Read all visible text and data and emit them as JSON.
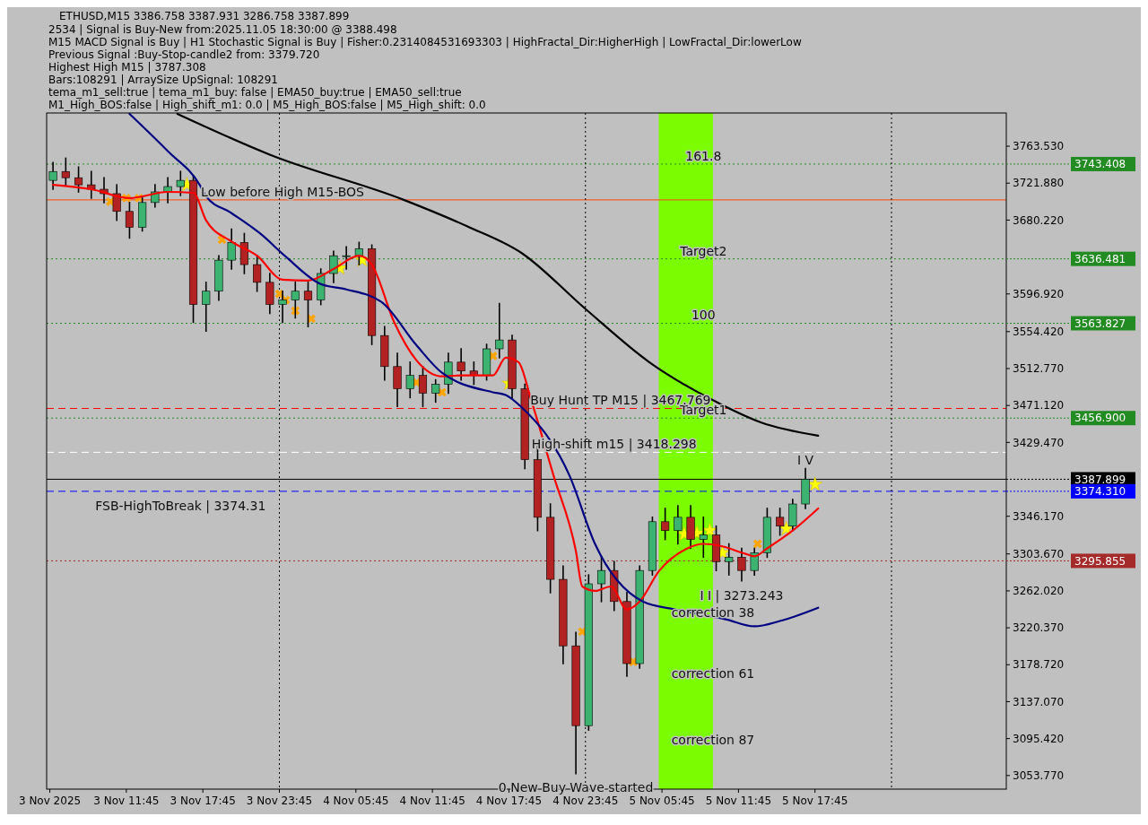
{
  "chart_data": {
    "type": "candlestick",
    "title": "ETHUSD,M15  3386.758 3387.931 3286.758 3387.899",
    "x": [
      "2025-11-03T06:00",
      "2025-11-03T07:00",
      "2025-11-03T08:00",
      "2025-11-03T09:00",
      "2025-11-03T10:00",
      "2025-11-03T11:00",
      "2025-11-03T12:00",
      "2025-11-03T13:00",
      "2025-11-03T14:00",
      "2025-11-03T15:00",
      "2025-11-03T16:00",
      "2025-11-03T17:00",
      "2025-11-03T18:00",
      "2025-11-03T19:00",
      "2025-11-03T20:00",
      "2025-11-03T21:00",
      "2025-11-03T22:00",
      "2025-11-03T23:00",
      "2025-11-04T00:00",
      "2025-11-04T01:00",
      "2025-11-04T02:00",
      "2025-11-04T03:00",
      "2025-11-04T04:00",
      "2025-11-04T05:00",
      "2025-11-04T06:00",
      "2025-11-04T07:00",
      "2025-11-04T08:00",
      "2025-11-04T09:00",
      "2025-11-04T10:00",
      "2025-11-04T11:00",
      "2025-11-04T12:00",
      "2025-11-04T13:00",
      "2025-11-04T14:00",
      "2025-11-04T15:00",
      "2025-11-04T16:00",
      "2025-11-04T17:00",
      "2025-11-04T18:00",
      "2025-11-04T19:00",
      "2025-11-04T20:00",
      "2025-11-04T21:00",
      "2025-11-04T22:00",
      "2025-11-04T23:00",
      "2025-11-05T00:00",
      "2025-11-05T01:00",
      "2025-11-05T02:00",
      "2025-11-05T03:00",
      "2025-11-05T04:00",
      "2025-11-05T05:00",
      "2025-11-05T06:00",
      "2025-11-05T07:00",
      "2025-11-05T08:00",
      "2025-11-05T09:00",
      "2025-11-05T10:00",
      "2025-11-05T11:00",
      "2025-11-05T12:00",
      "2025-11-05T13:00",
      "2025-11-05T14:00",
      "2025-11-05T15:00",
      "2025-11-05T16:00",
      "2025-11-05T17:00"
    ],
    "ohlc": [
      [
        3725,
        3745,
        3715,
        3735
      ],
      [
        3735,
        3750,
        3720,
        3728
      ],
      [
        3728,
        3740,
        3712,
        3720
      ],
      [
        3720,
        3735,
        3705,
        3715
      ],
      [
        3715,
        3728,
        3700,
        3710
      ],
      [
        3710,
        3720,
        3680,
        3690
      ],
      [
        3690,
        3700,
        3660,
        3672
      ],
      [
        3672,
        3705,
        3668,
        3700
      ],
      [
        3700,
        3720,
        3695,
        3712
      ],
      [
        3712,
        3728,
        3700,
        3718
      ],
      [
        3718,
        3735,
        3708,
        3725
      ],
      [
        3725,
        3730,
        3565,
        3585
      ],
      [
        3585,
        3610,
        3555,
        3600
      ],
      [
        3600,
        3640,
        3590,
        3635
      ],
      [
        3635,
        3670,
        3625,
        3655
      ],
      [
        3655,
        3665,
        3620,
        3630
      ],
      [
        3630,
        3640,
        3600,
        3610
      ],
      [
        3610,
        3620,
        3575,
        3585
      ],
      [
        3585,
        3600,
        3565,
        3590
      ],
      [
        3590,
        3610,
        3570,
        3600
      ],
      [
        3600,
        3610,
        3560,
        3590
      ],
      [
        3590,
        3625,
        3585,
        3620
      ],
      [
        3620,
        3645,
        3610,
        3640
      ],
      [
        3640,
        3650,
        3625,
        3640
      ],
      [
        3640,
        3655,
        3630,
        3648
      ],
      [
        3648,
        3652,
        3540,
        3550
      ],
      [
        3550,
        3560,
        3500,
        3515
      ],
      [
        3515,
        3530,
        3470,
        3490
      ],
      [
        3490,
        3520,
        3480,
        3505
      ],
      [
        3505,
        3515,
        3470,
        3485
      ],
      [
        3485,
        3500,
        3475,
        3495
      ],
      [
        3495,
        3530,
        3485,
        3520
      ],
      [
        3520,
        3535,
        3500,
        3510
      ],
      [
        3510,
        3520,
        3495,
        3505
      ],
      [
        3505,
        3540,
        3500,
        3535
      ],
      [
        3535,
        3586,
        3525,
        3545
      ],
      [
        3545,
        3550,
        3480,
        3490
      ],
      [
        3490,
        3495,
        3400,
        3410
      ],
      [
        3410,
        3425,
        3330,
        3345
      ],
      [
        3345,
        3360,
        3260,
        3275
      ],
      [
        3275,
        3290,
        3180,
        3200
      ],
      [
        3200,
        3215,
        3056,
        3110
      ],
      [
        3110,
        3280,
        3105,
        3270
      ],
      [
        3270,
        3300,
        3250,
        3285
      ],
      [
        3285,
        3295,
        3240,
        3250
      ],
      [
        3250,
        3260,
        3166,
        3180
      ],
      [
        3180,
        3290,
        3175,
        3285
      ],
      [
        3285,
        3345,
        3280,
        3340
      ],
      [
        3340,
        3355,
        3320,
        3330
      ],
      [
        3330,
        3358,
        3315,
        3345
      ],
      [
        3345,
        3358,
        3310,
        3320
      ],
      [
        3320,
        3345,
        3300,
        3325
      ],
      [
        3325,
        3335,
        3285,
        3295
      ],
      [
        3295,
        3315,
        3280,
        3300
      ],
      [
        3300,
        3310,
        3273.243,
        3285
      ],
      [
        3285,
        3310,
        3280,
        3305
      ],
      [
        3305,
        3355,
        3300,
        3345
      ],
      [
        3345,
        3355,
        3325,
        3335
      ],
      [
        3335,
        3365,
        3330,
        3360
      ],
      [
        3360,
        3400,
        3355,
        3388
      ]
    ],
    "series": [
      {
        "type": "line",
        "color": "#ff0000",
        "x": [
          "2025-11-03T06:00",
          "2025-11-03T09:00",
          "2025-11-03T12:00",
          "2025-11-03T15:00",
          "2025-11-03T17:00",
          "2025-11-03T18:00",
          "2025-11-03T20:00",
          "2025-11-03T22:00",
          "2025-11-04T00:00",
          "2025-11-04T02:00",
          "2025-11-04T04:00",
          "2025-11-04T06:00",
          "2025-11-04T07:00",
          "2025-11-04T08:45",
          "2025-11-04T10:30",
          "2025-11-04T12:30",
          "2025-11-04T14:00",
          "2025-11-04T16:30",
          "2025-11-04T17:30",
          "2025-11-04T18:30",
          "2025-11-04T19:30",
          "2025-11-04T21:15",
          "2025-11-04T23:00",
          "2025-11-04T23:30",
          "2025-11-05T00:30",
          "2025-11-05T01:45",
          "2025-11-05T03:00",
          "2025-11-05T04:00",
          "2025-11-05T05:30",
          "2025-11-05T07:45",
          "2025-11-05T09:00",
          "2025-11-05T10:15",
          "2025-11-05T12:15",
          "2025-11-05T13:00",
          "2025-11-05T14:00",
          "2025-11-05T16:00",
          "2025-11-05T18:00"
        ],
        "values": [
          3720,
          3715,
          3705,
          3712,
          3711,
          3680,
          3656,
          3640,
          3613,
          3612,
          3625,
          3640,
          3630,
          3565,
          3522,
          3504,
          3505,
          3505,
          3525,
          3520,
          3477,
          3392,
          3307,
          3267,
          3262,
          3267,
          3241,
          3250,
          3284,
          3310,
          3315,
          3313,
          3304,
          3301,
          3310,
          3330,
          3355
        ]
      },
      {
        "type": "line",
        "color": "#000080",
        "x": [
          "2025-11-03T12:00",
          "2025-11-03T15:00",
          "2025-11-03T17:30",
          "2025-11-03T18:00",
          "2025-11-03T20:00",
          "2025-11-03T22:15",
          "2025-11-04T00:15",
          "2025-11-04T03:00",
          "2025-11-04T05:00",
          "2025-11-04T07:45",
          "2025-11-04T10:30",
          "2025-11-04T12:30",
          "2025-11-04T16:30",
          "2025-11-04T17:30",
          "2025-11-04T18:45",
          "2025-11-04T22:30",
          "2025-11-05T00:30",
          "2025-11-05T04:15",
          "2025-11-05T06:45",
          "2025-11-05T10:45",
          "2025-11-05T13:00",
          "2025-11-05T15:00",
          "2025-11-05T18:00"
        ],
        "values": [
          3800,
          3758,
          3720,
          3707,
          3688,
          3665,
          3639,
          3608,
          3602,
          3588,
          3539,
          3508,
          3486,
          3483,
          3469,
          3392,
          3315,
          3250,
          3241,
          3230,
          3222,
          3228,
          3243
        ]
      },
      {
        "type": "line",
        "color": "#000000",
        "x": [
          "2025-11-03T15:45",
          "2025-11-03T23:00",
          "2025-11-04T09:30",
          "2025-11-04T14:30",
          "2025-11-04T18:45",
          "2025-11-04T23:45",
          "2025-11-05T04:45",
          "2025-11-05T09:45",
          "2025-11-05T13:30",
          "2025-11-05T18:00"
        ],
        "values": [
          3800,
          3754,
          3703,
          3673,
          3643,
          3580,
          3520,
          3477,
          3452,
          3437
        ]
      },
      {
        "type": "scatter",
        "marker": "star",
        "color": "#ffff00",
        "x": [
          "2025-11-03T16:30",
          "2025-11-04T04:30",
          "2025-11-04T06:15",
          "2025-11-04T17:45",
          "2025-11-05T07:30",
          "2025-11-05T08:30",
          "2025-11-05T09:30",
          "2025-11-05T10:30",
          "2025-11-05T15:30",
          "2025-11-05T17:45"
        ],
        "values": [
          3720,
          3626,
          3635,
          3496,
          3326,
          3327,
          3330,
          3305,
          3332,
          3382
        ]
      },
      {
        "type": "scatter",
        "marker": "cross",
        "color": "#ffa500",
        "x": [
          "2025-11-03T10:30",
          "2025-11-03T11:45",
          "2025-11-03T12:45",
          "2025-11-03T19:15",
          "2025-11-03T23:45",
          "2025-11-04T00:15",
          "2025-11-04T01:00",
          "2025-11-04T02:15",
          "2025-11-04T10:30",
          "2025-11-04T12:30",
          "2025-11-04T16:30",
          "2025-11-04T23:30",
          "2025-11-05T03:30",
          "2025-11-05T13:15"
        ],
        "values": [
          3701,
          3705,
          3705,
          3658,
          3597,
          3590,
          3578,
          3569,
          3497,
          3486,
          3527,
          3216,
          3182,
          3315
        ]
      }
    ],
    "xlim": [
      "2025-11-03T05:30",
      "2025-11-06T08:45"
    ],
    "xticks": [
      {
        "value": "2025-11-03T05:45",
        "label": "3 Nov 2025"
      },
      {
        "value": "2025-11-03T11:45",
        "label": "3 Nov 11:45"
      },
      {
        "value": "2025-11-03T17:45",
        "label": "3 Nov 17:45"
      },
      {
        "value": "2025-11-03T23:45",
        "label": "3 Nov 23:45"
      },
      {
        "value": "2025-11-04T05:45",
        "label": "4 Nov 05:45"
      },
      {
        "value": "2025-11-04T11:45",
        "label": "4 Nov 11:45"
      },
      {
        "value": "2025-11-04T17:45",
        "label": "4 Nov 17:45"
      },
      {
        "value": "2025-11-04T23:45",
        "label": "4 Nov 23:45"
      },
      {
        "value": "2025-11-05T05:45",
        "label": "5 Nov 05:45"
      },
      {
        "value": "2025-11-05T11:45",
        "label": "5 Nov 11:45"
      },
      {
        "value": "2025-11-05T17:45",
        "label": "5 Nov 17:45"
      }
    ],
    "ylim": [
      3038.4,
      3801
    ],
    "yticks": [
      {
        "value": 3763.53,
        "label": "3763.530"
      },
      {
        "value": 3721.88,
        "label": "3721.880"
      },
      {
        "value": 3680.22,
        "label": "3680.220"
      },
      {
        "value": 3596.92,
        "label": "3596.920"
      },
      {
        "value": 3554.42,
        "label": "3554.420"
      },
      {
        "value": 3512.77,
        "label": "3512.770"
      },
      {
        "value": 3471.12,
        "label": "3471.120"
      },
      {
        "value": 3429.47,
        "label": "3429.470"
      },
      {
        "value": 3346.17,
        "label": "3346.170"
      },
      {
        "value": 3303.67,
        "label": "3303.670"
      },
      {
        "value": 3262.02,
        "label": "3262.020"
      },
      {
        "value": 3220.37,
        "label": "3220.370"
      },
      {
        "value": 3178.72,
        "label": "3178.720"
      },
      {
        "value": 3137.07,
        "label": "3137.070"
      },
      {
        "value": 3095.42,
        "label": "3095.420"
      },
      {
        "value": 3053.77,
        "label": "3053.770"
      }
    ],
    "bands": [
      {
        "axis": "x",
        "from": "2025-11-05T05:30",
        "to": "2025-11-05T09:45",
        "color": "#7cfc00"
      }
    ],
    "ref_lines": [
      {
        "axis": "y",
        "value": 3743.408,
        "label": "3743.408",
        "color": "#228b22",
        "line_style": "dotted"
      },
      {
        "axis": "y",
        "value": 3636.481,
        "label": "3636.481",
        "color": "#228b22",
        "line_style": "dotted"
      },
      {
        "axis": "y",
        "value": 3563.827,
        "label": "3563.827",
        "color": "#228b22",
        "line_style": "dotted"
      },
      {
        "axis": "y",
        "value": 3456.9,
        "label": "3456.900",
        "color": "#228b22",
        "line_style": "dotted"
      },
      {
        "axis": "y",
        "value": 3387.899,
        "label": "3387.899",
        "color": "#000000",
        "line_style": "solid"
      },
      {
        "axis": "y",
        "value": 3374.31,
        "label": "3374.310",
        "color": "#0000ff",
        "line_style": "dashed"
      },
      {
        "axis": "y",
        "value": 3295.855,
        "label": "3295.855",
        "color": "#a52a2a",
        "line_style": "dotted"
      },
      {
        "axis": "y",
        "value": 3467.769,
        "color": "#ff0000",
        "line_style": "dashed"
      },
      {
        "axis": "y",
        "value": 3418.298,
        "color": "#ffffff",
        "line_style": "dashed"
      },
      {
        "axis": "y",
        "value": 3703,
        "color": "#ff4500",
        "line_style": "solid"
      },
      {
        "axis": "x",
        "value": "2025-11-03T23:45",
        "color": "#000000",
        "line_style": "dotted"
      },
      {
        "axis": "x",
        "value": "2025-11-04T23:45",
        "color": "#000000",
        "line_style": "dotted"
      },
      {
        "axis": "x",
        "value": "2025-11-05T23:45",
        "color": "#000000",
        "line_style": "dotted"
      }
    ],
    "annotations": [
      "2534 | Signal is Buy-New from:2025.11.05 18:30:00 @ 3388.498",
      "M15 MACD Signal is Buy | H1 Stochastic Signal is Buy | Fisher:0.2314084531693303 | HighFractal_Dir:HigherHigh | LowFractal_Dir:lowerLow",
      "Previous Signal :Buy-Stop-candle2 from: 3379.720",
      "Highest High  M15 | 3787.308",
      "Bars:108291 | ArraySize UpSignal: 108291",
      "tema_m1_sell:true | tema_m1_buy: false | EMA50_buy:true | EMA50_sell:true",
      "M1_High_BOS:false | High_shift_m1: 0.0 | M5_High_BOS:false | M5_High_shift: 0.0",
      {
        "text": "Low before High   M15-BOS",
        "x": "2025-11-04T00:00",
        "y": 3703
      },
      {
        "text": "161.8",
        "x": "2025-11-05T09:00",
        "y": 3743.408
      },
      {
        "text": "Target2",
        "x": "2025-11-05T09:00",
        "y": 3636.481
      },
      {
        "text": "100",
        "x": "2025-11-05T09:00",
        "y": 3563.827
      },
      {
        "text": "Target1",
        "x": "2025-11-05T09:00",
        "y": 3456.9
      },
      {
        "text": "Buy Hunt TP M15 | 3467.769",
        "x": "2025-11-05T02:30",
        "y": 3467.769
      },
      {
        "text": "High-shift m15 | 3418.298",
        "x": "2025-11-05T02:00",
        "y": 3418.298
      },
      {
        "text": "FSB-HighToBreak | 3374.31",
        "x": "2025-11-03T16:00",
        "y": 3374.31
      },
      {
        "text": "I I | 3273.243",
        "x": "2025-11-05T12:00",
        "y": 3273.243
      },
      {
        "text": "I V",
        "x": "2025-11-05T17:00",
        "y": 3400
      },
      {
        "text": "correction 38",
        "x": "2025-11-05T09:45",
        "y": 3228
      },
      {
        "text": "correction 61",
        "x": "2025-11-05T09:45",
        "y": 3160
      },
      {
        "text": "correction 87",
        "x": "2025-11-05T09:45",
        "y": 3085
      },
      {
        "text": "0 New Buy Wave started",
        "x": "2025-11-04T23:00",
        "y": 3056
      }
    ]
  }
}
